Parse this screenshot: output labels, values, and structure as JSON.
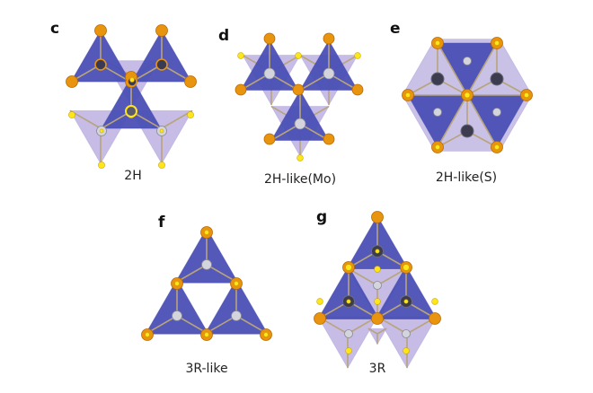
{
  "panels": [
    {
      "letter": "c",
      "caption": "2H"
    },
    {
      "letter": "d",
      "caption": "2H-like(Mo)"
    },
    {
      "letter": "e",
      "caption": "2H-like(S)"
    },
    {
      "letter": "f",
      "caption": "3R-like"
    },
    {
      "letter": "g",
      "caption": "3R"
    }
  ],
  "colors": {
    "dark_triangle": "#4a4fb5",
    "light_triangle": "#b3a6dd",
    "mo_atom": "#e8940e",
    "s_atom_bright": "#ffe61a",
    "s_atom_gray": "#9a9aa6",
    "bond": "#b8a47a"
  }
}
